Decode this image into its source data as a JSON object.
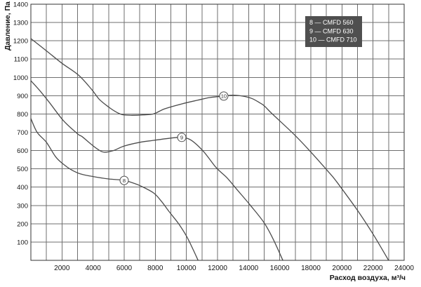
{
  "chart_data": {
    "type": "line",
    "title": "",
    "xlabel": "Расход воздуха, м³/ч",
    "ylabel": "Давление, Па",
    "xlim": [
      0,
      24000
    ],
    "ylim": [
      0,
      1400
    ],
    "x_grid_step": 1000,
    "y_grid_step": 100,
    "grid": true,
    "x_ticks": [
      2000,
      4000,
      6000,
      8000,
      10000,
      12000,
      14000,
      16000,
      18000,
      20000,
      22000,
      24000
    ],
    "y_ticks": [
      100,
      200,
      300,
      400,
      500,
      600,
      700,
      800,
      900,
      1000,
      1100,
      1200,
      1300,
      1400
    ],
    "legend": {
      "position": "top-inside",
      "items": [
        "8 — CMFD 560",
        "9 — CMFD 630",
        "10 — CMFD 710"
      ]
    },
    "series": [
      {
        "id": "8",
        "name": "CMFD 560",
        "marker": {
          "label": "8",
          "x": 6000,
          "y": 437
        },
        "points": [
          [
            0,
            775
          ],
          [
            400,
            700
          ],
          [
            1000,
            645
          ],
          [
            1600,
            565
          ],
          [
            2100,
            525
          ],
          [
            2600,
            495
          ],
          [
            3200,
            472
          ],
          [
            4000,
            458
          ],
          [
            5000,
            445
          ],
          [
            6000,
            437
          ],
          [
            6600,
            422
          ],
          [
            7100,
            405
          ],
          [
            7900,
            368
          ],
          [
            8400,
            322
          ],
          [
            8900,
            265
          ],
          [
            9500,
            200
          ],
          [
            10000,
            133
          ],
          [
            10400,
            65
          ],
          [
            10750,
            0
          ]
        ]
      },
      {
        "id": "9",
        "name": "CMFD 630",
        "marker": {
          "label": "9",
          "x": 9700,
          "y": 672
        },
        "points": [
          [
            0,
            982
          ],
          [
            600,
            925
          ],
          [
            1200,
            862
          ],
          [
            2100,
            763
          ],
          [
            3000,
            692
          ],
          [
            3300,
            676
          ],
          [
            3800,
            640
          ],
          [
            4300,
            607
          ],
          [
            4700,
            591
          ],
          [
            5300,
            600
          ],
          [
            6000,
            625
          ],
          [
            7000,
            645
          ],
          [
            7900,
            656
          ],
          [
            9000,
            668
          ],
          [
            9700,
            672
          ],
          [
            10300,
            657
          ],
          [
            11100,
            595
          ],
          [
            11900,
            508
          ],
          [
            12600,
            452
          ],
          [
            13200,
            392
          ],
          [
            14100,
            302
          ],
          [
            15000,
            205
          ],
          [
            15600,
            112
          ],
          [
            16200,
            0
          ]
        ]
      },
      {
        "id": "10",
        "name": "CMFD 710",
        "marker": {
          "label": "10",
          "x": 12400,
          "y": 898
        },
        "points": [
          [
            0,
            1212
          ],
          [
            1000,
            1145
          ],
          [
            2000,
            1077
          ],
          [
            3070,
            1012
          ],
          [
            3900,
            935
          ],
          [
            4400,
            880
          ],
          [
            5000,
            838
          ],
          [
            5500,
            810
          ],
          [
            5900,
            796
          ],
          [
            6500,
            793
          ],
          [
            7200,
            795
          ],
          [
            7900,
            801
          ],
          [
            8600,
            828
          ],
          [
            9700,
            855
          ],
          [
            10700,
            875
          ],
          [
            11500,
            890
          ],
          [
            12400,
            898
          ],
          [
            13000,
            903
          ],
          [
            13600,
            898
          ],
          [
            14200,
            885
          ],
          [
            14700,
            862
          ],
          [
            15000,
            845
          ],
          [
            15500,
            802
          ],
          [
            16900,
            690
          ],
          [
            18000,
            592
          ],
          [
            19200,
            477
          ],
          [
            19700,
            425
          ],
          [
            21000,
            273
          ],
          [
            22000,
            143
          ],
          [
            23000,
            0
          ]
        ]
      }
    ]
  },
  "colors": {
    "background": "#ffffff",
    "grid": "#6f6f6f",
    "frame": "#333333",
    "curve": "#4c4c4c",
    "marker_fill": "#ffffff",
    "marker_stroke": "#4c4c4c",
    "legend_bg": "#4f4f4f",
    "legend_text": "#ffffff",
    "label_text": "#141414"
  }
}
